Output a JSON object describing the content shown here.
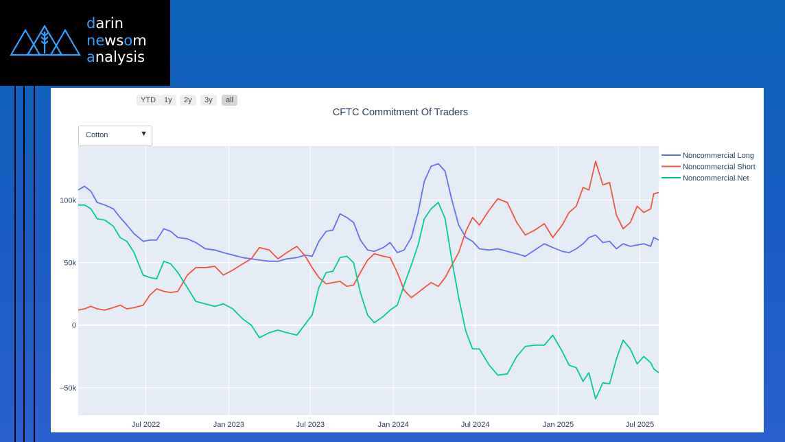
{
  "brand": {
    "line1_hl": "d",
    "line1_rest": "arin",
    "line2_a": "n",
    "line2_hl1": "e",
    "line2_b": "ws",
    "line2_hl2": "o",
    "line2_c": "m",
    "line3_hl": "a",
    "line3_rest": "nalysis"
  },
  "range_buttons": [
    "YTD",
    "1y",
    "2y",
    "3y",
    "all"
  ],
  "active_range": "all",
  "dropdown_value": "Cotton",
  "colors": {
    "long": "#636efa",
    "short": "#ef553b",
    "net": "#00cc96",
    "plot_bg": "#e5ecf6"
  },
  "chart_data": {
    "type": "line",
    "title": "CFTC Commitment Of Traders",
    "x_range": [
      "2022-02-01",
      "2025-08-12"
    ],
    "ylim": [
      -72000,
      143000
    ],
    "y_ticks": [
      -50000,
      0,
      50000,
      100000
    ],
    "y_tick_labels": [
      "−50k",
      "0",
      "50k",
      "100k"
    ],
    "x_ticks": [
      "2022-07-01",
      "2023-01-01",
      "2023-07-01",
      "2024-01-01",
      "2024-07-01",
      "2025-01-01",
      "2025-07-01"
    ],
    "x_tick_labels": [
      "Jul 2022",
      "Jan 2023",
      "Jul 2023",
      "Jan 2024",
      "Jul 2024",
      "Jan 2025",
      "Jul 2025"
    ],
    "grid": true,
    "legend_position": "right",
    "series": [
      {
        "name": "Noncommercial Long",
        "key": "long",
        "points": [
          [
            "2022-02-01",
            108000
          ],
          [
            "2022-02-15",
            111000
          ],
          [
            "2022-03-01",
            107000
          ],
          [
            "2022-03-15",
            98000
          ],
          [
            "2022-04-01",
            96000
          ],
          [
            "2022-04-20",
            93000
          ],
          [
            "2022-05-05",
            86000
          ],
          [
            "2022-05-20",
            80000
          ],
          [
            "2022-06-05",
            73000
          ],
          [
            "2022-06-25",
            67000
          ],
          [
            "2022-07-10",
            68000
          ],
          [
            "2022-07-25",
            68000
          ],
          [
            "2022-08-10",
            77000
          ],
          [
            "2022-08-25",
            75000
          ],
          [
            "2022-09-10",
            70000
          ],
          [
            "2022-10-01",
            69000
          ],
          [
            "2022-10-20",
            66000
          ],
          [
            "2022-11-10",
            61000
          ],
          [
            "2022-12-01",
            60000
          ],
          [
            "2022-12-20",
            58000
          ],
          [
            "2023-01-10",
            56000
          ],
          [
            "2023-02-01",
            54000
          ],
          [
            "2023-02-20",
            53000
          ],
          [
            "2023-03-10",
            52000
          ],
          [
            "2023-04-01",
            51000
          ],
          [
            "2023-04-20",
            51000
          ],
          [
            "2023-05-10",
            53000
          ],
          [
            "2023-06-01",
            54000
          ],
          [
            "2023-06-20",
            56000
          ],
          [
            "2023-07-05",
            55000
          ],
          [
            "2023-07-20",
            67000
          ],
          [
            "2023-08-05",
            75000
          ],
          [
            "2023-08-20",
            76000
          ],
          [
            "2023-09-05",
            89000
          ],
          [
            "2023-09-20",
            86000
          ],
          [
            "2023-10-05",
            82000
          ],
          [
            "2023-10-20",
            68000
          ],
          [
            "2023-11-05",
            60000
          ],
          [
            "2023-11-20",
            59000
          ],
          [
            "2023-12-10",
            62000
          ],
          [
            "2023-12-25",
            66000
          ],
          [
            "2024-01-10",
            58000
          ],
          [
            "2024-01-25",
            60000
          ],
          [
            "2024-02-10",
            70000
          ],
          [
            "2024-02-25",
            90000
          ],
          [
            "2024-03-10",
            115000
          ],
          [
            "2024-03-25",
            127000
          ],
          [
            "2024-04-10",
            129000
          ],
          [
            "2024-04-25",
            123000
          ],
          [
            "2024-05-10",
            100000
          ],
          [
            "2024-05-25",
            80000
          ],
          [
            "2024-06-10",
            70000
          ],
          [
            "2024-06-25",
            67000
          ],
          [
            "2024-07-10",
            61000
          ],
          [
            "2024-08-01",
            60000
          ],
          [
            "2024-08-20",
            61000
          ],
          [
            "2024-09-10",
            59000
          ],
          [
            "2024-10-01",
            57000
          ],
          [
            "2024-10-20",
            55000
          ],
          [
            "2024-11-10",
            60000
          ],
          [
            "2024-12-01",
            65000
          ],
          [
            "2024-12-20",
            62000
          ],
          [
            "2025-01-10",
            59000
          ],
          [
            "2025-01-25",
            58000
          ],
          [
            "2025-02-10",
            61000
          ],
          [
            "2025-02-25",
            65000
          ],
          [
            "2025-03-10",
            70000
          ],
          [
            "2025-03-25",
            72000
          ],
          [
            "2025-04-10",
            66000
          ],
          [
            "2025-04-25",
            67000
          ],
          [
            "2025-05-10",
            61000
          ],
          [
            "2025-05-25",
            65000
          ],
          [
            "2025-06-10",
            63000
          ],
          [
            "2025-06-25",
            64000
          ],
          [
            "2025-07-10",
            65000
          ],
          [
            "2025-07-25",
            63000
          ],
          [
            "2025-08-01",
            70000
          ],
          [
            "2025-08-12",
            68000
          ]
        ]
      },
      {
        "name": "Noncommercial Short",
        "key": "short",
        "points": [
          [
            "2022-02-01",
            12000
          ],
          [
            "2022-02-15",
            13000
          ],
          [
            "2022-03-01",
            15000
          ],
          [
            "2022-03-15",
            13000
          ],
          [
            "2022-04-01",
            12000
          ],
          [
            "2022-04-20",
            14000
          ],
          [
            "2022-05-05",
            16000
          ],
          [
            "2022-05-20",
            13000
          ],
          [
            "2022-06-05",
            14000
          ],
          [
            "2022-06-25",
            16000
          ],
          [
            "2022-07-10",
            24000
          ],
          [
            "2022-07-25",
            29000
          ],
          [
            "2022-08-10",
            27000
          ],
          [
            "2022-08-25",
            26000
          ],
          [
            "2022-09-10",
            27000
          ],
          [
            "2022-10-01",
            40000
          ],
          [
            "2022-10-20",
            46000
          ],
          [
            "2022-11-10",
            46000
          ],
          [
            "2022-12-01",
            47000
          ],
          [
            "2022-12-20",
            40000
          ],
          [
            "2023-01-10",
            44000
          ],
          [
            "2023-02-01",
            49000
          ],
          [
            "2023-02-20",
            53000
          ],
          [
            "2023-03-10",
            62000
          ],
          [
            "2023-04-01",
            60000
          ],
          [
            "2023-04-20",
            53000
          ],
          [
            "2023-05-10",
            58000
          ],
          [
            "2023-06-01",
            63000
          ],
          [
            "2023-06-20",
            55000
          ],
          [
            "2023-07-05",
            46000
          ],
          [
            "2023-07-20",
            38000
          ],
          [
            "2023-08-05",
            33000
          ],
          [
            "2023-08-20",
            34000
          ],
          [
            "2023-09-05",
            35000
          ],
          [
            "2023-09-20",
            31000
          ],
          [
            "2023-10-05",
            32000
          ],
          [
            "2023-10-20",
            42000
          ],
          [
            "2023-11-05",
            52000
          ],
          [
            "2023-11-20",
            57000
          ],
          [
            "2023-12-10",
            55000
          ],
          [
            "2023-12-25",
            54000
          ],
          [
            "2024-01-10",
            42000
          ],
          [
            "2024-01-25",
            28000
          ],
          [
            "2024-02-10",
            22000
          ],
          [
            "2024-02-25",
            26000
          ],
          [
            "2024-03-10",
            30000
          ],
          [
            "2024-03-25",
            34000
          ],
          [
            "2024-04-10",
            31000
          ],
          [
            "2024-04-25",
            38000
          ],
          [
            "2024-05-10",
            48000
          ],
          [
            "2024-05-25",
            58000
          ],
          [
            "2024-06-10",
            75000
          ],
          [
            "2024-06-25",
            86000
          ],
          [
            "2024-07-10",
            80000
          ],
          [
            "2024-08-01",
            92000
          ],
          [
            "2024-08-20",
            101000
          ],
          [
            "2024-09-10",
            98000
          ],
          [
            "2024-10-01",
            82000
          ],
          [
            "2024-10-20",
            72000
          ],
          [
            "2024-11-10",
            76000
          ],
          [
            "2024-12-01",
            81000
          ],
          [
            "2024-12-20",
            70000
          ],
          [
            "2025-01-10",
            80000
          ],
          [
            "2025-01-25",
            90000
          ],
          [
            "2025-02-10",
            95000
          ],
          [
            "2025-02-25",
            110000
          ],
          [
            "2025-03-10",
            108000
          ],
          [
            "2025-03-25",
            131000
          ],
          [
            "2025-04-10",
            112000
          ],
          [
            "2025-04-25",
            114000
          ],
          [
            "2025-05-10",
            88000
          ],
          [
            "2025-05-25",
            77000
          ],
          [
            "2025-06-10",
            82000
          ],
          [
            "2025-06-25",
            95000
          ],
          [
            "2025-07-10",
            90000
          ],
          [
            "2025-07-25",
            93000
          ],
          [
            "2025-08-01",
            105000
          ],
          [
            "2025-08-12",
            106000
          ]
        ]
      },
      {
        "name": "Noncommercial Net",
        "key": "net",
        "points": [
          [
            "2022-02-01",
            96000
          ],
          [
            "2022-02-15",
            96000
          ],
          [
            "2022-03-01",
            93000
          ],
          [
            "2022-03-15",
            85000
          ],
          [
            "2022-04-01",
            84000
          ],
          [
            "2022-04-20",
            79000
          ],
          [
            "2022-05-05",
            70000
          ],
          [
            "2022-05-20",
            67000
          ],
          [
            "2022-06-05",
            58000
          ],
          [
            "2022-06-25",
            40000
          ],
          [
            "2022-07-10",
            38000
          ],
          [
            "2022-07-25",
            37000
          ],
          [
            "2022-08-10",
            51000
          ],
          [
            "2022-08-25",
            49000
          ],
          [
            "2022-09-10",
            42000
          ],
          [
            "2022-10-01",
            30000
          ],
          [
            "2022-10-20",
            19000
          ],
          [
            "2022-11-10",
            17000
          ],
          [
            "2022-12-01",
            15000
          ],
          [
            "2022-12-20",
            17000
          ],
          [
            "2023-01-10",
            13000
          ],
          [
            "2023-02-01",
            5000
          ],
          [
            "2023-02-20",
            0
          ],
          [
            "2023-03-10",
            -10000
          ],
          [
            "2023-04-01",
            -6000
          ],
          [
            "2023-04-20",
            -4000
          ],
          [
            "2023-05-10",
            -6000
          ],
          [
            "2023-06-01",
            -8000
          ],
          [
            "2023-06-20",
            1000
          ],
          [
            "2023-07-05",
            8000
          ],
          [
            "2023-07-20",
            30000
          ],
          [
            "2023-08-05",
            42000
          ],
          [
            "2023-08-20",
            43000
          ],
          [
            "2023-09-05",
            54000
          ],
          [
            "2023-09-20",
            55000
          ],
          [
            "2023-10-05",
            50000
          ],
          [
            "2023-10-20",
            26000
          ],
          [
            "2023-11-05",
            8000
          ],
          [
            "2023-11-20",
            2000
          ],
          [
            "2023-12-10",
            7000
          ],
          [
            "2023-12-25",
            12000
          ],
          [
            "2024-01-10",
            16000
          ],
          [
            "2024-01-25",
            32000
          ],
          [
            "2024-02-10",
            48000
          ],
          [
            "2024-02-25",
            64000
          ],
          [
            "2024-03-10",
            85000
          ],
          [
            "2024-03-25",
            93000
          ],
          [
            "2024-04-10",
            98000
          ],
          [
            "2024-04-25",
            85000
          ],
          [
            "2024-05-10",
            52000
          ],
          [
            "2024-05-25",
            22000
          ],
          [
            "2024-06-10",
            -5000
          ],
          [
            "2024-06-25",
            -19000
          ],
          [
            "2024-07-10",
            -19000
          ],
          [
            "2024-08-01",
            -32000
          ],
          [
            "2024-08-20",
            -40000
          ],
          [
            "2024-09-10",
            -39000
          ],
          [
            "2024-10-01",
            -25000
          ],
          [
            "2024-10-20",
            -17000
          ],
          [
            "2024-11-10",
            -16000
          ],
          [
            "2024-12-01",
            -16000
          ],
          [
            "2024-12-20",
            -8000
          ],
          [
            "2025-01-10",
            -21000
          ],
          [
            "2025-01-25",
            -32000
          ],
          [
            "2025-02-10",
            -34000
          ],
          [
            "2025-02-25",
            -45000
          ],
          [
            "2025-03-10",
            -38000
          ],
          [
            "2025-03-25",
            -59000
          ],
          [
            "2025-04-10",
            -46000
          ],
          [
            "2025-04-25",
            -47000
          ],
          [
            "2025-05-10",
            -27000
          ],
          [
            "2025-05-25",
            -12000
          ],
          [
            "2025-06-10",
            -19000
          ],
          [
            "2025-06-25",
            -31000
          ],
          [
            "2025-07-10",
            -25000
          ],
          [
            "2025-07-25",
            -30000
          ],
          [
            "2025-08-01",
            -35000
          ],
          [
            "2025-08-12",
            -38000
          ]
        ]
      }
    ]
  }
}
